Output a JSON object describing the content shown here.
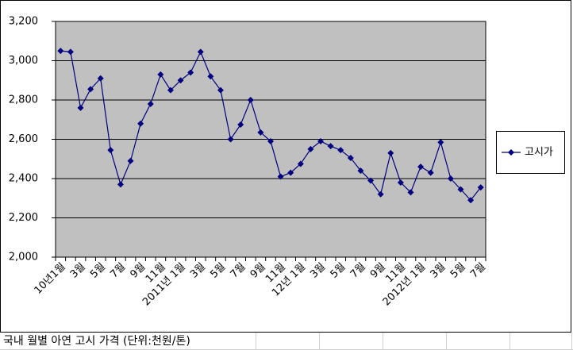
{
  "chart_data": {
    "type": "line",
    "categories": [
      "10년1월",
      null,
      "3월",
      null,
      "5월",
      null,
      "7월",
      null,
      "9월",
      null,
      "11월",
      null,
      "2011년 1월",
      null,
      "3월",
      null,
      "5월",
      null,
      "7월",
      null,
      "9월",
      null,
      "11월",
      null,
      "12년 1월",
      null,
      "3월",
      null,
      "5월",
      null,
      "7월",
      null,
      "9월",
      null,
      "11월",
      null,
      "2012년 1월",
      null,
      "3월",
      null,
      "5월",
      null,
      "7월"
    ],
    "series": [
      {
        "name": "고시가",
        "color": "#000080",
        "values": [
          3050,
          3045,
          2760,
          2855,
          2910,
          2545,
          2370,
          2490,
          2680,
          2780,
          2930,
          2850,
          2900,
          2940,
          3045,
          2920,
          2850,
          2600,
          2675,
          2800,
          2635,
          2590,
          2410,
          2430,
          2475,
          2550,
          2590,
          2565,
          2545,
          2505,
          2440,
          2390,
          2320,
          2530,
          2380,
          2330,
          2460,
          2430,
          2585,
          2400,
          2345,
          2290,
          2355
        ]
      }
    ],
    "ylim": [
      2000,
      3200
    ],
    "yticks": [
      {
        "value": 2000,
        "label": "2,000"
      },
      {
        "value": 2200,
        "label": "2,200"
      },
      {
        "value": 2400,
        "label": "2,400"
      },
      {
        "value": 2600,
        "label": "2,600"
      },
      {
        "value": 2800,
        "label": "2,800"
      },
      {
        "value": 3000,
        "label": "3,000"
      },
      {
        "value": 3200,
        "label": "3,200"
      }
    ],
    "grid": true,
    "plot_background": "#c0c0c0",
    "legend": "right",
    "caption": "국내 월별 아연 고시 가격 (단위:천원/톤)"
  }
}
